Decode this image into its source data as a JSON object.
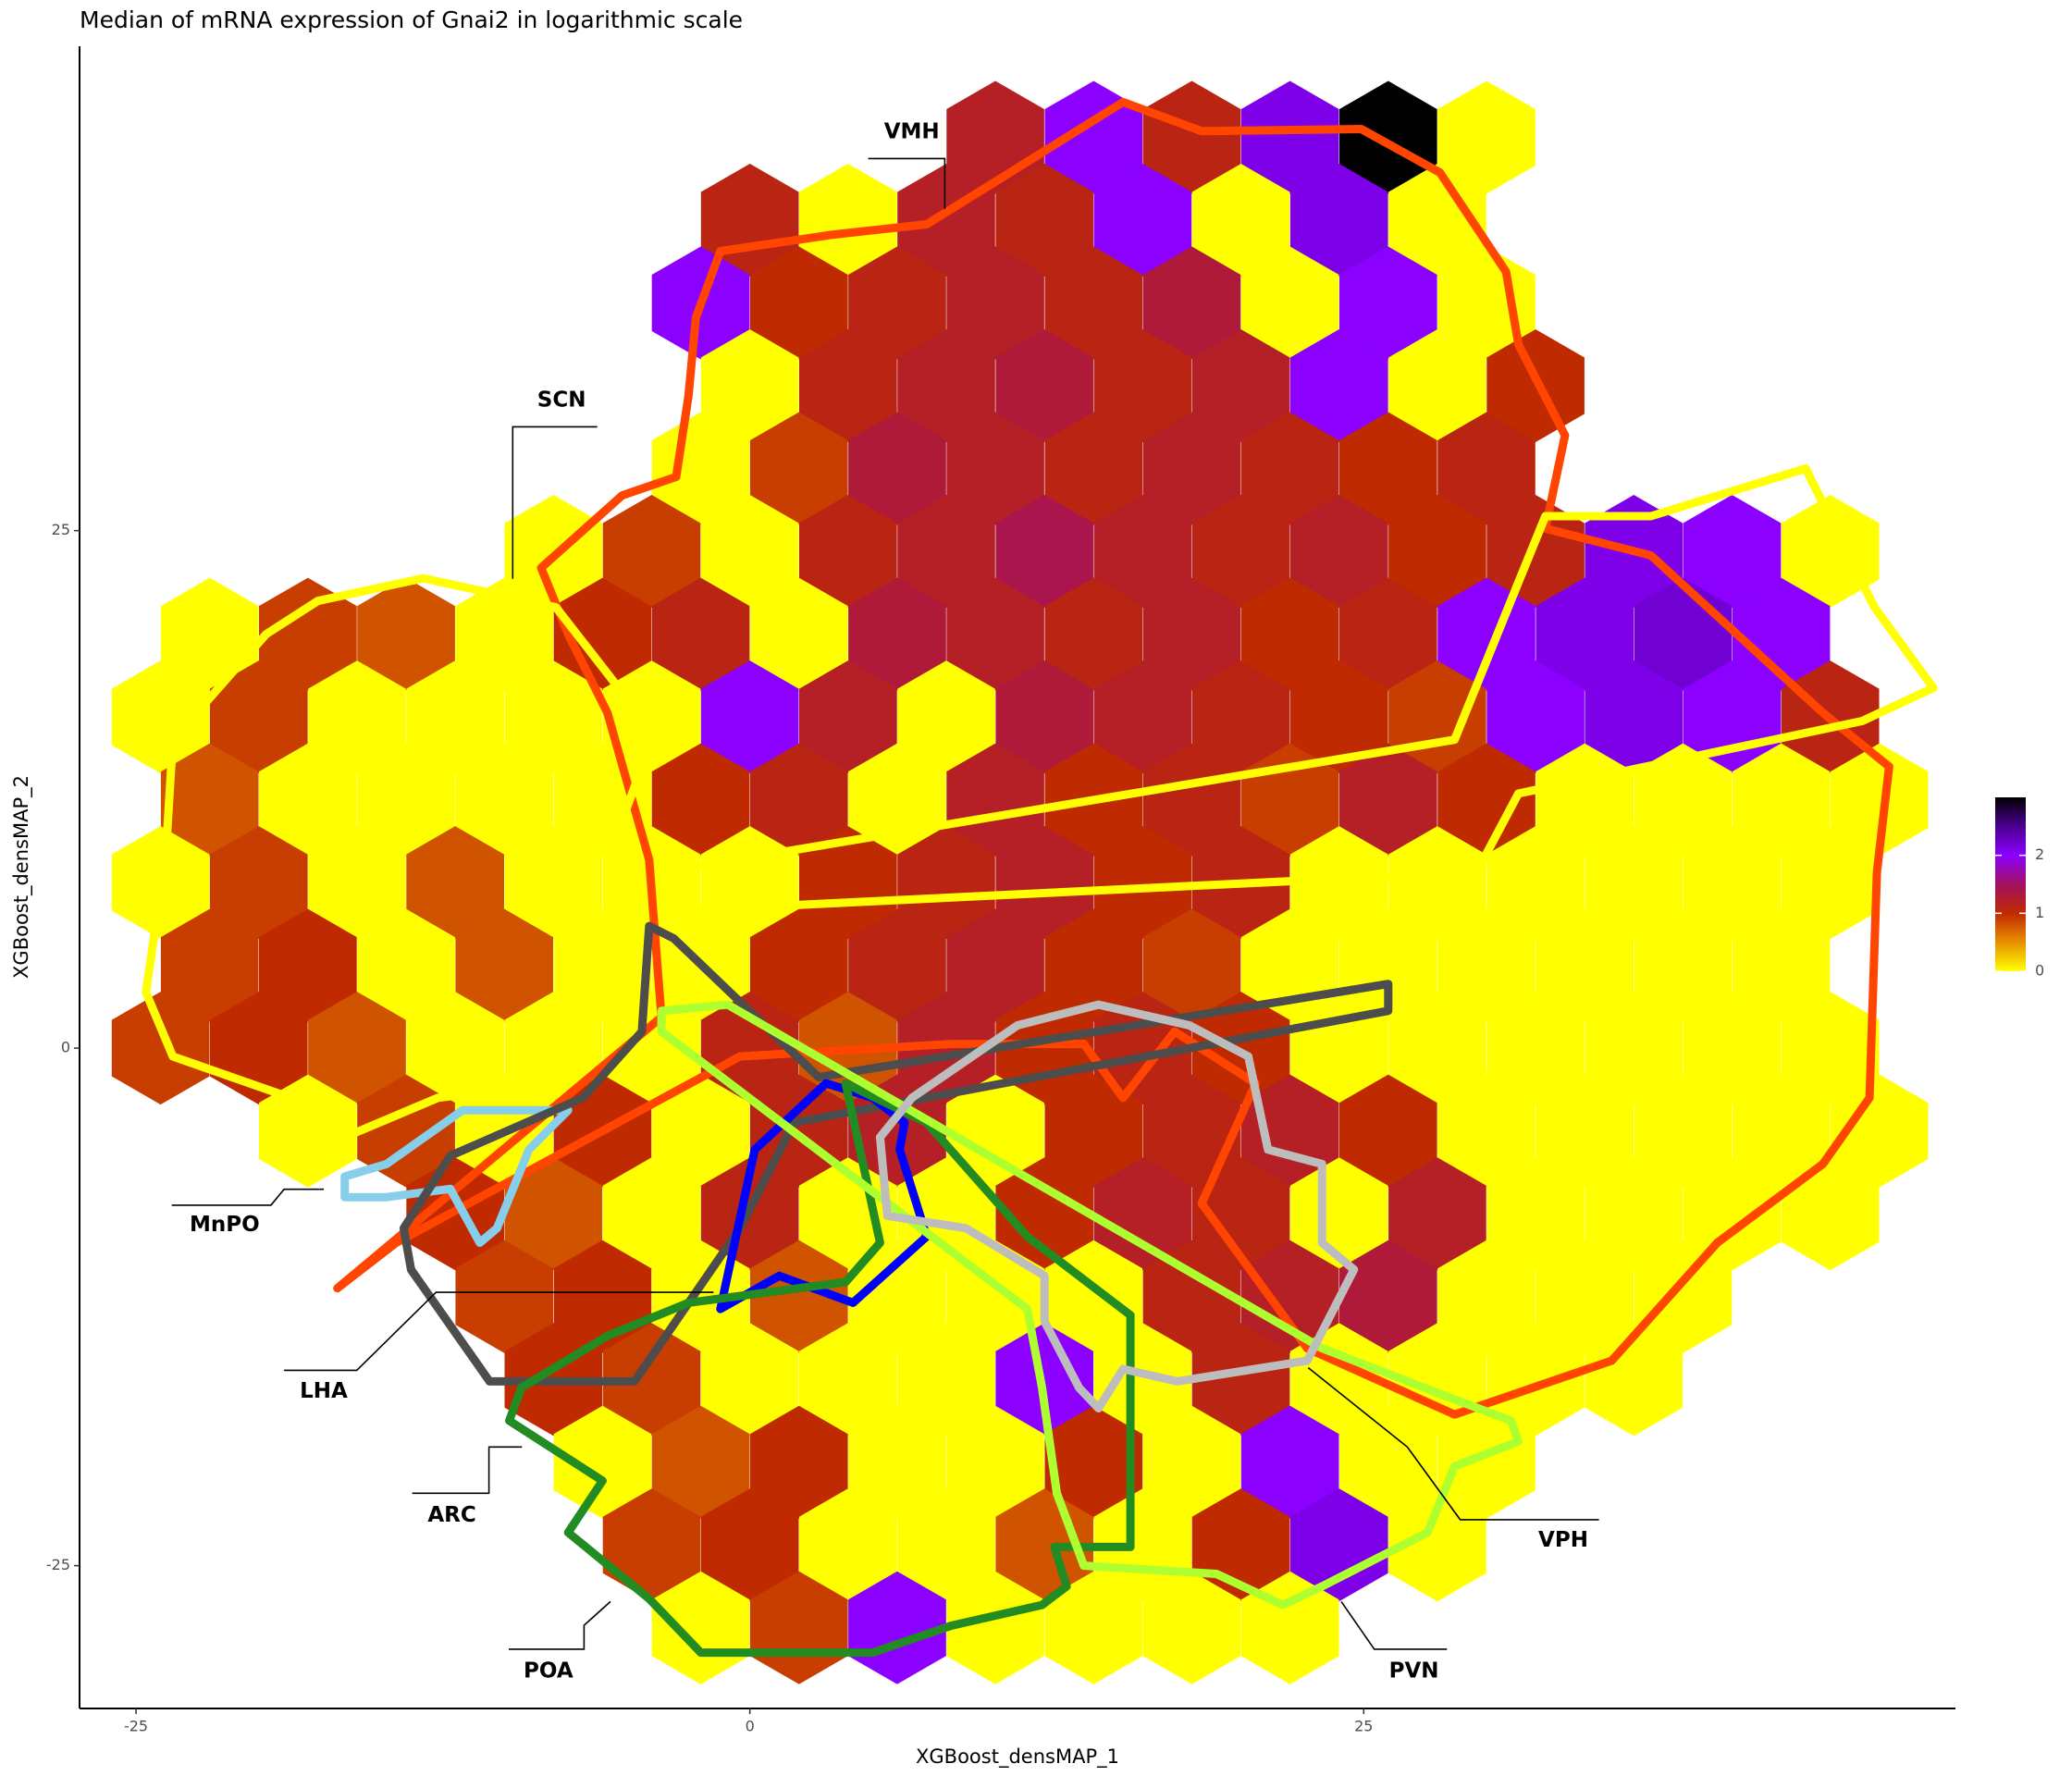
{
  "chart_data": {
    "type": "hexbin",
    "title": "Median of mRNA expression of Gnai2 in logarithmic scale",
    "x_label": "XGBoost_densMAP_1",
    "y_label": "XGBoost_densMAP_2",
    "xlim": [
      -27.3,
      49.1
    ],
    "ylim": [
      -31.9,
      48.4
    ],
    "xticks": [
      -25,
      0,
      25
    ],
    "yticks": [
      -25,
      0,
      25
    ],
    "grid": false,
    "colorbar": {
      "clim": [
        0,
        3
      ],
      "ticks": [
        0,
        1,
        2
      ],
      "colors": [
        "#ffff00",
        "#e89000",
        "#c02a00",
        "#a41060",
        "#8b00ff",
        "#4b0090",
        "#000000"
      ]
    },
    "hexbins": {
      "rows": [
        {
          "y": 44,
          "x": [
            10,
            14,
            18,
            22,
            26,
            30
          ],
          "values": [
            1.2,
            2.0,
            1.1,
            2.1,
            3.0,
            0
          ]
        },
        {
          "y": 40,
          "x": [
            0,
            4,
            8,
            12,
            16,
            20,
            24,
            28
          ],
          "values": [
            1.1,
            0,
            1.2,
            1.1,
            2.0,
            0,
            2.1,
            0
          ]
        },
        {
          "y": 36,
          "x": [
            -2,
            2,
            6,
            10,
            14,
            18,
            22,
            26,
            30
          ],
          "values": [
            2.0,
            1.0,
            1.1,
            1.2,
            1.1,
            1.3,
            0,
            2.0,
            0
          ]
        },
        {
          "y": 32,
          "x": [
            0,
            4,
            8,
            12,
            16,
            20,
            24,
            28,
            32
          ],
          "values": [
            0,
            1.1,
            1.2,
            1.3,
            1.1,
            1.2,
            2.0,
            0,
            1.0
          ]
        },
        {
          "y": 28,
          "x": [
            -2,
            2,
            6,
            10,
            14,
            18,
            22,
            26,
            30
          ],
          "values": [
            0,
            0.9,
            1.3,
            1.2,
            1.1,
            1.2,
            1.1,
            1.0,
            1.1
          ]
        },
        {
          "y": 24,
          "x": [
            -8,
            -4,
            0,
            4,
            8,
            12,
            16,
            20,
            24,
            28,
            32,
            36,
            40,
            44
          ],
          "values": [
            0,
            0.9,
            0,
            1.1,
            1.2,
            1.4,
            1.2,
            1.1,
            1.2,
            1.0,
            1.1,
            2.1,
            2.0,
            0
          ]
        },
        {
          "y": 20,
          "x": [
            -22,
            -18,
            -14,
            -10,
            -6,
            -2,
            2,
            6,
            10,
            14,
            18,
            22,
            26,
            30,
            34,
            38,
            42
          ],
          "values": [
            0,
            0.9,
            0.8,
            0,
            1.0,
            1.1,
            0,
            1.3,
            1.2,
            1.1,
            1.2,
            1.0,
            1.1,
            2.0,
            2.1,
            2.2,
            2.0
          ]
        },
        {
          "y": 16,
          "x": [
            -24,
            -20,
            -16,
            -12,
            -8,
            -4,
            0,
            4,
            8,
            12,
            16,
            20,
            24,
            28,
            32,
            36,
            40,
            44
          ],
          "values": [
            0,
            0.9,
            0,
            0,
            0,
            0,
            2.0,
            1.2,
            0,
            1.3,
            1.2,
            1.1,
            1.0,
            0.9,
            2.0,
            2.1,
            2.0,
            1.1
          ]
        },
        {
          "y": 12,
          "x": [
            -22,
            -18,
            -14,
            -10,
            -6,
            -2,
            2,
            6,
            10,
            14,
            18,
            22,
            26,
            30,
            34,
            38,
            42,
            46
          ],
          "values": [
            0.8,
            0,
            0,
            0,
            0,
            1.0,
            1.1,
            0,
            1.2,
            1.0,
            1.1,
            0.9,
            1.2,
            1.0,
            0,
            0,
            0,
            0
          ]
        },
        {
          "y": 8,
          "x": [
            -24,
            -20,
            -16,
            -12,
            -8,
            -4,
            0,
            4,
            8,
            12,
            16,
            20,
            24,
            28,
            32,
            36,
            40,
            44
          ],
          "values": [
            0,
            0.9,
            0,
            0.8,
            0,
            0,
            0,
            1.0,
            1.1,
            1.2,
            1.0,
            1.1,
            0,
            0,
            0,
            0,
            0,
            0
          ]
        },
        {
          "y": 4,
          "x": [
            -22,
            -18,
            -14,
            -10,
            -6,
            -2,
            2,
            6,
            10,
            14,
            18,
            22,
            26,
            30,
            34,
            38,
            42
          ],
          "values": [
            0.9,
            1.0,
            0,
            0.8,
            0,
            0,
            1.0,
            1.1,
            1.2,
            1.0,
            0.9,
            0,
            0,
            0,
            0,
            0,
            0
          ]
        },
        {
          "y": 0,
          "x": [
            -24,
            -20,
            -16,
            -12,
            -8,
            -4,
            0,
            4,
            8,
            12,
            16,
            20,
            24,
            28,
            32,
            36,
            40,
            44
          ],
          "values": [
            0.9,
            1.0,
            0.8,
            0,
            0,
            0,
            1.1,
            0.8,
            1.2,
            1.0,
            1.1,
            1.0,
            0,
            0,
            0,
            0,
            0,
            0
          ]
        },
        {
          "y": -4,
          "x": [
            -18,
            -14,
            -10,
            -6,
            -2,
            2,
            6,
            10,
            14,
            18,
            22,
            26,
            30,
            34,
            38,
            42,
            46
          ],
          "values": [
            0,
            0.9,
            0,
            1.0,
            0,
            1.1,
            1.2,
            0,
            1.0,
            1.1,
            1.2,
            1.0,
            0,
            0,
            0,
            0,
            0
          ]
        },
        {
          "y": -8,
          "x": [
            -12,
            -8,
            -4,
            0,
            4,
            8,
            12,
            16,
            20,
            24,
            28,
            32,
            36,
            40,
            44
          ],
          "values": [
            1.0,
            0.8,
            0,
            1.1,
            0,
            0,
            1.0,
            1.2,
            1.1,
            0,
            1.2,
            0,
            0,
            0,
            0
          ]
        },
        {
          "y": -12,
          "x": [
            -10,
            -6,
            -2,
            2,
            6,
            10,
            14,
            18,
            22,
            26,
            30,
            34,
            38
          ],
          "values": [
            0.9,
            1.0,
            0,
            0.8,
            0,
            0,
            0,
            1.1,
            1.2,
            1.3,
            0,
            0,
            0
          ]
        },
        {
          "y": -16,
          "x": [
            -8,
            -4,
            0,
            4,
            8,
            12,
            16,
            20,
            24,
            28,
            32,
            36
          ],
          "values": [
            1.0,
            0.9,
            0,
            0,
            0,
            2.0,
            0,
            1.1,
            0,
            0,
            0,
            0
          ]
        },
        {
          "y": -20,
          "x": [
            -6,
            -2,
            2,
            6,
            10,
            14,
            18,
            22,
            26,
            30
          ],
          "values": [
            0,
            0.8,
            1.0,
            0,
            0,
            1.0,
            0,
            2.0,
            0,
            0
          ]
        },
        {
          "y": -24,
          "x": [
            -4,
            0,
            4,
            8,
            12,
            16,
            20,
            24,
            28
          ],
          "values": [
            0.9,
            1.0,
            0,
            0,
            0.8,
            0,
            1.0,
            2.1,
            0
          ]
        },
        {
          "y": -28,
          "x": [
            -2,
            2,
            6,
            10,
            14,
            18,
            22
          ],
          "values": [
            0,
            0.9,
            2.0,
            0,
            0,
            0,
            0
          ]
        }
      ]
    },
    "regions": [
      {
        "name": "VMH",
        "color": "#ff4500",
        "x": [
          -1.2,
          3.4,
          7.2,
          10.6,
          15.2,
          18.4,
          24.9,
          28.1,
          30.8,
          31.3,
          33.2,
          32.4,
          36.7,
          43.7,
          46.4,
          45.9,
          45.6,
          43.7,
          39.4,
          35.1,
          28.7,
          22.7,
          18.4,
          20.6,
          17.3,
          15.2,
          13.6,
          8.2,
          -0.4,
          -14.4,
          -16.8,
          -3.6,
          -4.1,
          -5.8,
          -7.4,
          -8.5,
          -5.2,
          -3.0,
          -2.5,
          -2.2
        ],
        "y": [
          38.5,
          39.3,
          39.8,
          42.3,
          45.7,
          44.3,
          44.4,
          42.3,
          37.5,
          34,
          29.6,
          25.1,
          23.8,
          16.2,
          13.6,
          8.5,
          -2.4,
          -5.6,
          -9.4,
          -15.1,
          -17.7,
          -14.5,
          -7.5,
          -1.7,
          0.8,
          -2.4,
          0.2,
          0.2,
          -0.4,
          -9.4,
          -11.6,
          1.5,
          9.1,
          16.2,
          20,
          23.2,
          26.7,
          27.6,
          31.5,
          35.3
        ]
      },
      {
        "name": "SCN",
        "color": "#ffff00",
        "x": [
          -17.6,
          -13.3,
          -7.9,
          -3.9,
          -5.2,
          -5.2,
          -6.8,
          -7.9,
          -12.7,
          -16.5,
          -18.7,
          -23.5,
          -24.6,
          -23.8,
          -23.5,
          -19.7,
          null,
          43,
          45.8,
          48.2,
          45.3,
          31.3,
          29.6,
          -3.6,
          -3.6,
          28.7,
          31.3,
          32.4,
          36.7
        ],
        "y": [
          21.6,
          22.7,
          21.3,
          15.2,
          11,
          8.2,
          0.8,
          -1.7,
          -2.4,
          -4.3,
          -2.4,
          -0.4,
          2.7,
          9.1,
          14.9,
          20,
          null,
          28,
          21.3,
          17.4,
          15.8,
          12.3,
          8.5,
          6.6,
          8.5,
          14.9,
          22.5,
          25.7,
          25.7
        ]
      },
      {
        "name": "MnPO",
        "color": "#87ceeb",
        "x": [
          -16.5,
          -14.8,
          -11.7,
          -7.4,
          -9.0,
          -10.3,
          -11.0,
          -12.2,
          -14.8,
          -16.5
        ],
        "y": [
          -6.2,
          -5.6,
          -3.0,
          -3.0,
          -4.9,
          -8.7,
          -9.4,
          -6.8,
          -7.2,
          -7.2
        ]
      },
      {
        "name": "LHA",
        "color": "#4d4d4d",
        "x": [
          -4.1,
          -4.4,
          -6.8,
          -12.2,
          -14.1,
          -13.8,
          -10.6,
          -4.7,
          -0.4,
          1.8,
          26,
          26,
          2.8,
          -3.1
        ],
        "y": [
          5.9,
          0.8,
          -2.4,
          -5.2,
          -8.7,
          -10.7,
          -16.1,
          -16.1,
          -8.7,
          -3.6,
          1.8,
          3.1,
          -1.4,
          5.3
        ]
      },
      {
        "name": "ARC",
        "color": "#0000ff",
        "x": [
          5,
          3.1,
          0.2,
          -1.2,
          1.2,
          4.2,
          7.2,
          6.1,
          6.3
        ],
        "y": [
          -2.4,
          -1.7,
          -4.9,
          -12.6,
          -11,
          -12.3,
          -9.1,
          -4.9,
          -3.6
        ]
      },
      {
        "name": "POA",
        "color": "#228b22",
        "x": [
          3.9,
          5.3,
          3.9,
          -2.5,
          -5.8,
          -9.3,
          -9.8,
          -6.0,
          -7.4,
          -4.1,
          -2,
          5,
          8.2,
          11.9,
          12.9,
          12.4,
          15.5,
          15.5,
          11.3,
          7.2
        ],
        "y": [
          -1.7,
          -9.4,
          -11.3,
          -12.3,
          -13.9,
          -16.4,
          -18,
          -20.9,
          -23.4,
          -26.6,
          -29.2,
          -29.2,
          -27.9,
          -26.9,
          -26,
          -24.1,
          -24.1,
          -12.9,
          -9.1,
          -3.6
        ]
      },
      {
        "name": "PVN",
        "color": "#adff2f",
        "x": [
          -3.6,
          -0.9,
          23.3,
          28.1,
          31,
          31.3,
          28.7,
          27.6,
          23.3,
          21.7,
          19,
          13.6,
          12.5,
          11.9,
          11.3,
          -3.6
        ],
        "y": [
          1.8,
          2.1,
          -14.5,
          -16.7,
          -18,
          -19,
          -20.2,
          -23.4,
          -26,
          -26.9,
          -25.4,
          -25,
          -21.5,
          -16.4,
          -12.6,
          0.8
        ]
      },
      {
        "name": "VPH",
        "color": "#bdbdbd",
        "x": [
          6.6,
          10.9,
          14.2,
          17.9,
          20.3,
          21.1,
          23.3,
          23.3,
          24.6,
          22.7,
          17.4,
          15.2,
          14.2,
          13.4,
          12,
          12,
          8.8,
          5.6,
          5.3
        ],
        "y": [
          -2.4,
          1.1,
          2.1,
          1.1,
          -0.4,
          -4.9,
          -5.6,
          -9.4,
          -10.7,
          -15.1,
          -16.1,
          -15.5,
          -17.4,
          -16.4,
          -13.2,
          -11,
          -8.7,
          -8.1,
          -4.3
        ]
      }
    ]
  }
}
